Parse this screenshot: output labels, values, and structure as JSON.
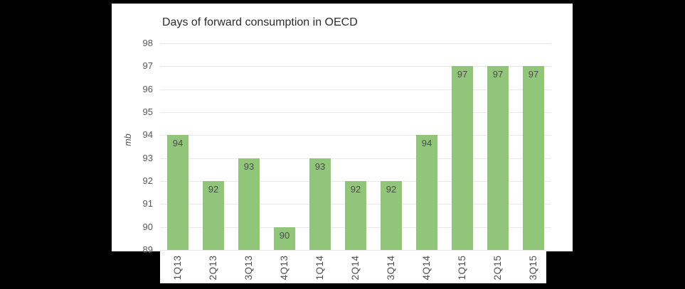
{
  "window": {
    "background_color": "#000000",
    "panel_color": "#ffffff"
  },
  "chart_data": {
    "type": "bar",
    "title": "Days of forward consumption in OECD",
    "xlabel": "",
    "ylabel": "mb",
    "categories": [
      "1Q13",
      "2Q13",
      "3Q13",
      "4Q13",
      "1Q14",
      "2Q14",
      "3Q14",
      "4Q14",
      "1Q15",
      "2Q15",
      "3Q15"
    ],
    "values": [
      94,
      92,
      93,
      90,
      93,
      92,
      92,
      94,
      97,
      97,
      97
    ],
    "ylim": [
      89,
      98
    ],
    "yticks": [
      98,
      97,
      96,
      95,
      94,
      93,
      92,
      91,
      90,
      89
    ],
    "grid": true,
    "legend": "none",
    "value_labels": "inside-top",
    "bar_color": "#90c57a",
    "value_label_color": "#4d4d4d",
    "tick_label_color": "#595959",
    "title_color": "#2d2d2d",
    "gridline_color": "#e9e9e9"
  }
}
